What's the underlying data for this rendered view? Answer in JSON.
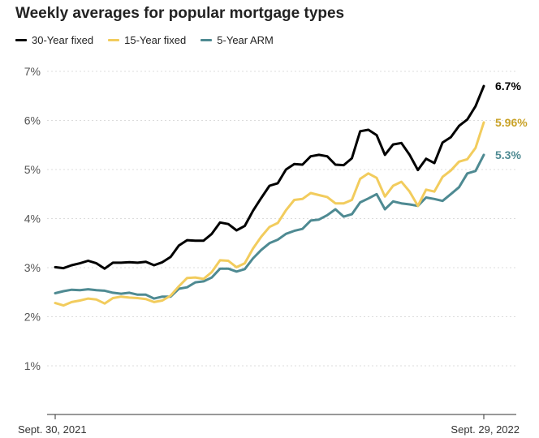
{
  "chart_data": {
    "type": "line",
    "title": "Weekly averages for popular mortgage types",
    "xlabel": "",
    "ylabel": "",
    "ylim": [
      0,
      7
    ],
    "yticks": [
      "1%",
      "2%",
      "3%",
      "4%",
      "5%",
      "6%",
      "7%"
    ],
    "xtick_labels": [
      "Sept. 30, 2021",
      "Sept. 29, 2022"
    ],
    "grid": true,
    "legend_position": "top-left",
    "series": [
      {
        "name": "30-Year fixed",
        "color": "#000000",
        "end_label": "6.7%",
        "label_color": "#000000",
        "values": [
          3.01,
          2.99,
          3.05,
          3.09,
          3.14,
          3.09,
          2.98,
          3.1,
          3.1,
          3.11,
          3.1,
          3.12,
          3.05,
          3.11,
          3.22,
          3.45,
          3.56,
          3.55,
          3.55,
          3.69,
          3.92,
          3.89,
          3.76,
          3.85,
          4.16,
          4.42,
          4.67,
          4.72,
          5.0,
          5.11,
          5.1,
          5.27,
          5.3,
          5.27,
          5.1,
          5.09,
          5.23,
          5.78,
          5.81,
          5.7,
          5.3,
          5.51,
          5.54,
          5.3,
          4.99,
          5.22,
          5.13,
          5.55,
          5.66,
          5.89,
          6.02,
          6.29,
          6.7
        ]
      },
      {
        "name": "15-Year fixed",
        "color": "#f2cc5d",
        "end_label": "5.96%",
        "label_color": "#c9a227",
        "values": [
          2.28,
          2.23,
          2.3,
          2.33,
          2.37,
          2.35,
          2.27,
          2.38,
          2.41,
          2.39,
          2.38,
          2.36,
          2.3,
          2.33,
          2.43,
          2.62,
          2.79,
          2.8,
          2.77,
          2.91,
          3.15,
          3.14,
          3.01,
          3.09,
          3.39,
          3.63,
          3.83,
          3.91,
          4.17,
          4.38,
          4.4,
          4.52,
          4.48,
          4.44,
          4.31,
          4.31,
          4.38,
          4.81,
          4.92,
          4.83,
          4.45,
          4.67,
          4.75,
          4.55,
          4.26,
          4.59,
          4.55,
          4.85,
          4.98,
          5.16,
          5.21,
          5.44,
          5.96
        ]
      },
      {
        "name": "5-Year ARM",
        "color": "#4e8a92",
        "end_label": "5.3%",
        "label_color": "#4e8a92",
        "values": [
          2.48,
          2.52,
          2.55,
          2.54,
          2.56,
          2.54,
          2.53,
          2.49,
          2.47,
          2.49,
          2.45,
          2.45,
          2.37,
          2.41,
          2.41,
          2.57,
          2.6,
          2.7,
          2.72,
          2.8,
          2.98,
          2.98,
          2.92,
          2.97,
          3.19,
          3.36,
          3.5,
          3.57,
          3.69,
          3.75,
          3.79,
          3.96,
          3.98,
          4.07,
          4.19,
          4.04,
          4.09,
          4.33,
          4.41,
          4.5,
          4.19,
          4.35,
          4.31,
          4.29,
          4.26,
          4.43,
          4.4,
          4.36,
          4.5,
          4.64,
          4.92,
          4.97,
          5.3
        ]
      }
    ]
  }
}
